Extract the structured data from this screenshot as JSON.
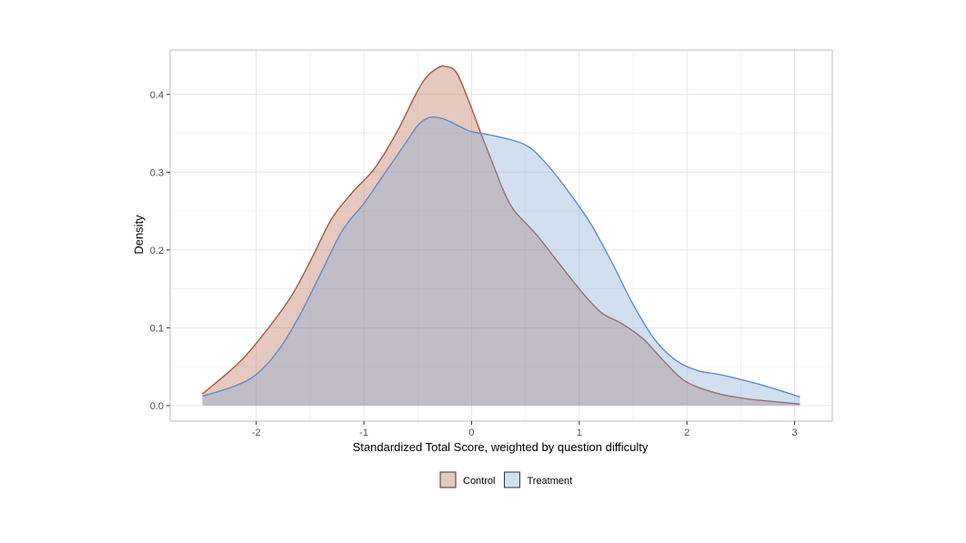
{
  "chart_data": {
    "type": "area",
    "title": "",
    "xlabel": "Standardized Total Score, weighted by question difficulty",
    "ylabel": "Density",
    "xlim": [
      -2.8,
      3.35
    ],
    "ylim": [
      -0.02,
      0.457
    ],
    "x_ticks": [
      -2,
      -1,
      0,
      1,
      2,
      3
    ],
    "x_tick_labels": [
      "-2",
      "-1",
      "0",
      "1",
      "2",
      "3"
    ],
    "y_ticks": [
      0.0,
      0.1,
      0.2,
      0.3,
      0.4
    ],
    "y_tick_labels": [
      "0.0",
      "0.1",
      "0.2",
      "0.3",
      "0.4"
    ],
    "grid": true,
    "legend_position": "bottom",
    "series": [
      {
        "name": "Control",
        "fill": "#b5654a",
        "stroke": "#a5583f",
        "x": [
          -2.5,
          -2.2,
          -2.0,
          -1.7,
          -1.5,
          -1.3,
          -1.1,
          -0.9,
          -0.7,
          -0.5,
          -0.4,
          -0.3,
          -0.25,
          -0.15,
          -0.05,
          0.1,
          0.2,
          0.3,
          0.4,
          0.6,
          0.8,
          1.0,
          1.2,
          1.4,
          1.6,
          1.8,
          2.0,
          2.3,
          2.6,
          3.05
        ],
        "y": [
          0.015,
          0.05,
          0.08,
          0.135,
          0.185,
          0.24,
          0.275,
          0.305,
          0.35,
          0.405,
          0.425,
          0.435,
          0.436,
          0.43,
          0.4,
          0.345,
          0.31,
          0.275,
          0.25,
          0.22,
          0.185,
          0.15,
          0.12,
          0.105,
          0.085,
          0.055,
          0.03,
          0.015,
          0.008,
          0.002
        ]
      },
      {
        "name": "Treatment",
        "fill": "#7ba3d6",
        "stroke": "#5f8cc8",
        "x": [
          -2.5,
          -2.2,
          -2.0,
          -1.8,
          -1.6,
          -1.4,
          -1.2,
          -1.0,
          -0.8,
          -0.6,
          -0.5,
          -0.4,
          -0.3,
          -0.2,
          -0.1,
          0.0,
          0.2,
          0.5,
          0.7,
          0.9,
          1.1,
          1.3,
          1.5,
          1.7,
          1.9,
          2.1,
          2.3,
          2.6,
          2.85,
          3.05
        ],
        "y": [
          0.012,
          0.025,
          0.04,
          0.07,
          0.115,
          0.17,
          0.225,
          0.26,
          0.3,
          0.34,
          0.36,
          0.37,
          0.37,
          0.365,
          0.358,
          0.352,
          0.347,
          0.335,
          0.31,
          0.275,
          0.235,
          0.185,
          0.13,
          0.085,
          0.058,
          0.045,
          0.04,
          0.03,
          0.02,
          0.011
        ]
      }
    ]
  }
}
